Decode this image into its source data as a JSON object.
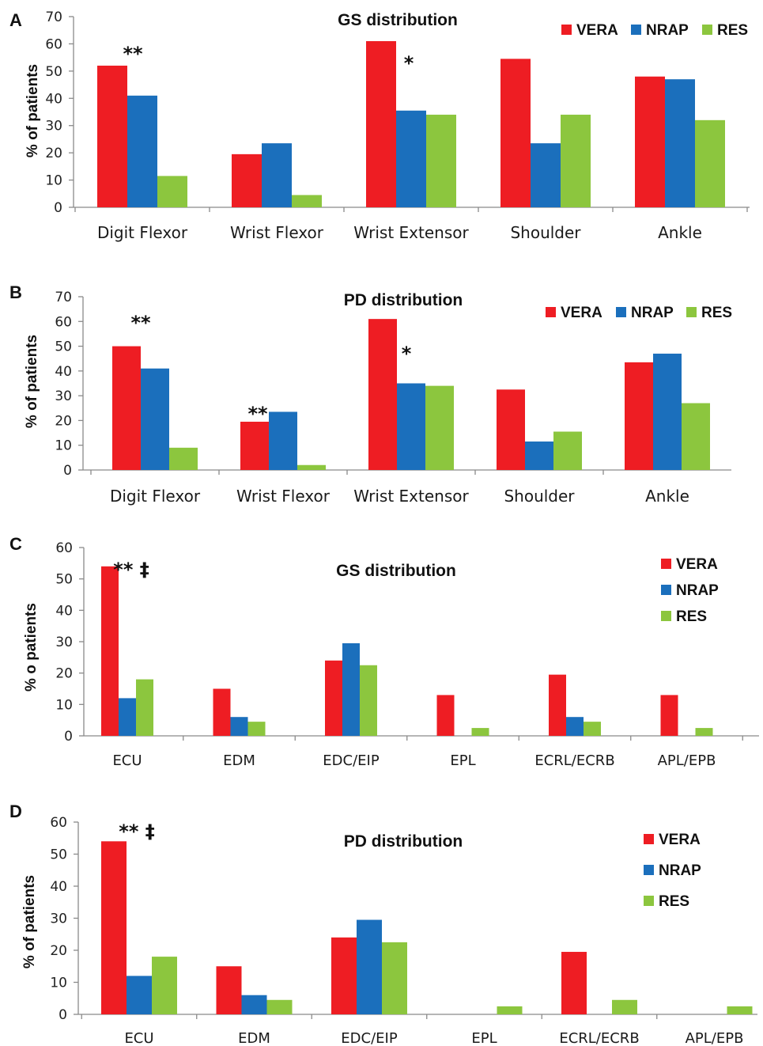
{
  "colors": {
    "VERA": "#ee1d23",
    "NRAP": "#1b6fbc",
    "RES": "#8cc63e"
  },
  "chart_data": [
    {
      "panel": "A",
      "type": "bar",
      "title": "GS distribution",
      "ylabel": "% of patients",
      "ylim": [
        0,
        70
      ],
      "yticks": [
        0,
        10,
        20,
        30,
        40,
        50,
        60,
        70
      ],
      "legend_placement": "top-right",
      "categories": [
        "Digit Flexor",
        "Wrist Flexor",
        "Wrist Extensor",
        "Shoulder",
        "Ankle"
      ],
      "series": [
        {
          "name": "VERA",
          "values": [
            52,
            19.5,
            61,
            54.5,
            48
          ]
        },
        {
          "name": "NRAP",
          "values": [
            41,
            23.5,
            35.5,
            23.5,
            47
          ]
        },
        {
          "name": "RES",
          "values": [
            11.5,
            4.5,
            34,
            34,
            32
          ]
        }
      ],
      "annotations": [
        {
          "text": "**",
          "category": 0
        },
        {
          "text": "*",
          "category": 2
        }
      ]
    },
    {
      "panel": "B",
      "type": "bar",
      "title": "PD distribution",
      "ylabel": "% of patients",
      "ylim": [
        0,
        70
      ],
      "yticks": [
        0,
        10,
        20,
        30,
        40,
        50,
        60,
        70
      ],
      "legend_placement": "top-right",
      "categories": [
        "Digit Flexor",
        "Wrist Flexor",
        "Wrist Extensor",
        "Shoulder",
        "Ankle"
      ],
      "series": [
        {
          "name": "VERA",
          "values": [
            50,
            19.5,
            61,
            32.5,
            43.5
          ]
        },
        {
          "name": "NRAP",
          "values": [
            41,
            23.5,
            35,
            11.5,
            47
          ]
        },
        {
          "name": "RES",
          "values": [
            9,
            2,
            34,
            15.5,
            27
          ]
        }
      ],
      "annotations": [
        {
          "text": "**",
          "category": 0
        },
        {
          "text": "**",
          "category": 1
        },
        {
          "text": "*",
          "category": 2
        }
      ]
    },
    {
      "panel": "C",
      "type": "bar",
      "title": "GS distribution",
      "ylabel": "% o patients",
      "ylim": [
        0,
        60
      ],
      "yticks": [
        0,
        10,
        20,
        30,
        40,
        50,
        60
      ],
      "legend_placement": "top-right",
      "categories": [
        "ECU",
        "EDM",
        "EDC/EIP",
        "EPL",
        "ECRL/ECRB",
        "APL/EPB"
      ],
      "series": [
        {
          "name": "VERA",
          "values": [
            54,
            15,
            24,
            13,
            19.5,
            13
          ]
        },
        {
          "name": "NRAP",
          "values": [
            12,
            6,
            29.5,
            0,
            6,
            0
          ]
        },
        {
          "name": "RES",
          "values": [
            18,
            4.5,
            22.5,
            2.5,
            4.5,
            2.5
          ]
        }
      ],
      "annotations": [
        {
          "text": "** ‡",
          "category": 0
        }
      ]
    },
    {
      "panel": "D",
      "type": "bar",
      "title": "PD distribution",
      "ylabel": "% of patients",
      "ylim": [
        0,
        60
      ],
      "yticks": [
        0,
        10,
        20,
        30,
        40,
        50,
        60
      ],
      "legend_placement": "top-right",
      "categories": [
        "ECU",
        "EDM",
        "EDC/EIP",
        "EPL",
        "ECRL/ECRB",
        "APL/EPB"
      ],
      "series": [
        {
          "name": "VERA",
          "values": [
            54,
            15,
            24,
            0,
            19.5,
            0
          ]
        },
        {
          "name": "NRAP",
          "values": [
            12,
            6,
            29.5,
            0,
            0,
            0
          ]
        },
        {
          "name": "RES",
          "values": [
            18,
            4.5,
            22.5,
            2.5,
            4.5,
            2.5
          ]
        }
      ],
      "annotations": [
        {
          "text": "** ‡",
          "category": 0
        }
      ]
    }
  ]
}
